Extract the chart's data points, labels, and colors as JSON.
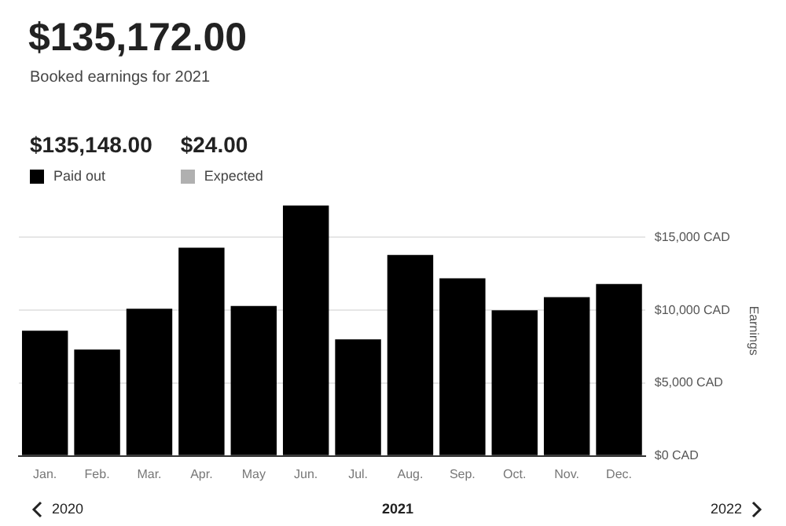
{
  "chart_data": {
    "type": "bar",
    "title": "$135,172.00",
    "subtitle": "Booked earnings for 2021",
    "annotations": [
      "$135,148.00",
      "$24.00",
      "2020",
      "2021",
      "2022"
    ],
    "categories": [
      "Jan.",
      "Feb.",
      "Mar.",
      "Apr.",
      "May",
      "Jun.",
      "Jul.",
      "Aug.",
      "Sep.",
      "Oct.",
      "Nov.",
      "Dec."
    ],
    "series": [
      {
        "name": "Paid out",
        "color": "#000000",
        "values": [
          8600,
          7300,
          10100,
          14300,
          10300,
          17200,
          8000,
          13800,
          12200,
          10000,
          10900,
          11800
        ]
      },
      {
        "name": "Expected",
        "color": "#b0b0b0",
        "values": [
          0,
          0,
          0,
          0,
          0,
          0,
          0,
          0,
          0,
          0,
          0,
          0
        ]
      }
    ],
    "stacked": true,
    "ylabel": "Earnings",
    "ylim": [
      0,
      17200
    ],
    "yticks": [
      {
        "value": 0,
        "label": "$0 CAD"
      },
      {
        "value": 5000,
        "label": "$5,000 CAD"
      },
      {
        "value": 10000,
        "label": "$10,000 CAD"
      },
      {
        "value": 15000,
        "label": "$15,000 CAD"
      }
    ],
    "grid": "y",
    "legend": "top left"
  }
}
